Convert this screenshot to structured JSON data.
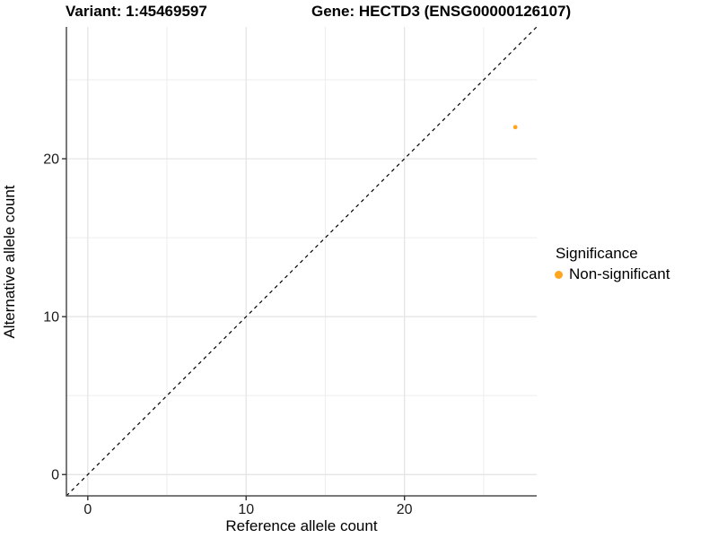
{
  "figure": {
    "background": "#ffffff"
  },
  "chart_data": {
    "type": "scatter",
    "title_left": "Variant: 1:45469597",
    "title_right": "Gene: HECTD3 (ENSG00000126107)",
    "xlabel": "Reference allele count",
    "ylabel": "Alternative allele count",
    "xlim": [
      -1.35,
      28.35
    ],
    "ylim": [
      -1.35,
      28.35
    ],
    "x_major_ticks": [
      0,
      10,
      20
    ],
    "y_major_ticks": [
      0,
      10,
      20
    ],
    "x_minor_ticks": [
      5,
      15,
      25
    ],
    "y_minor_ticks": [
      5,
      15,
      25
    ],
    "grid": "on",
    "series": [
      {
        "name": "Non-significant",
        "points": [
          {
            "x": 27,
            "y": 22
          }
        ],
        "color": "#FFA51E",
        "point_radius": 2.4
      }
    ],
    "identity_line": {
      "type": "dashed",
      "slope": 1,
      "intercept": 0,
      "color": "#000000"
    },
    "legend": {
      "title": "Significance",
      "position": "right",
      "entries": [
        {
          "label": "Non-significant",
          "color": "#FFA51E"
        }
      ]
    },
    "style": {
      "axis_line_color": "#4d4d4d",
      "tick_color": "#333333",
      "tick_label_color": "#1a1a1a",
      "grid_major_color": "#e3e3e3",
      "grid_minor_color": "#ededed"
    }
  }
}
